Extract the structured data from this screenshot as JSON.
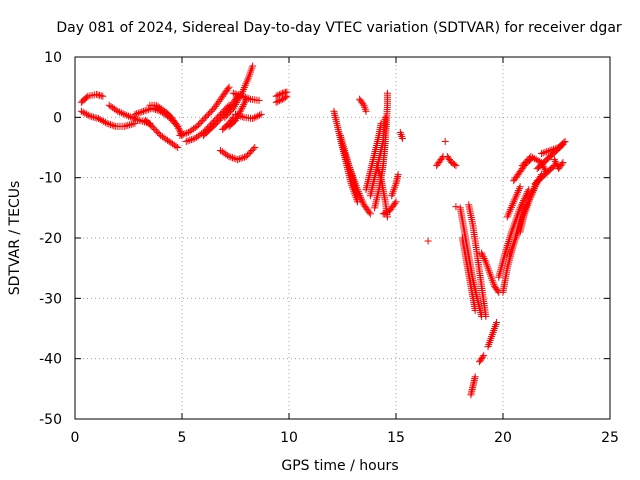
{
  "chart_data": {
    "type": "scatter",
    "title": "Day 081 of 2024, Sidereal Day-to-day VTEC variation (SDTVAR) for receiver dgar",
    "xlabel": "GPS time / hours",
    "ylabel": "SDTVAR / TECUs",
    "xlim": [
      0,
      25
    ],
    "ylim": [
      -50,
      10
    ],
    "xticks": [
      0,
      5,
      10,
      15,
      20,
      25
    ],
    "yticks": [
      -50,
      -40,
      -30,
      -20,
      -10,
      0,
      10
    ],
    "grid": true,
    "marker": "plus",
    "color": "#ff0000",
    "series": [
      {
        "tracks": [
          [
            [
              0.3,
              2.5
            ],
            [
              0.6,
              3.5
            ],
            [
              1.0,
              3.8
            ],
            [
              1.3,
              3.5
            ]
          ],
          [
            [
              0.3,
              1.0
            ],
            [
              0.7,
              0.2
            ],
            [
              1.1,
              -0.2
            ],
            [
              1.5,
              -1.0
            ],
            [
              1.9,
              -1.5
            ],
            [
              2.3,
              -1.5
            ],
            [
              2.8,
              -1.0
            ]
          ],
          [
            [
              1.6,
              2.0
            ],
            [
              2.0,
              1.0
            ],
            [
              2.5,
              0.2
            ],
            [
              3.0,
              -0.5
            ],
            [
              3.5,
              -1.0
            ]
          ],
          [
            [
              2.8,
              0.5
            ],
            [
              3.2,
              1.0
            ],
            [
              3.6,
              1.5
            ],
            [
              4.0,
              1.0
            ],
            [
              4.4,
              0.0
            ],
            [
              4.8,
              -1.5
            ],
            [
              5.0,
              -3.0
            ]
          ],
          [
            [
              3.3,
              -0.5
            ],
            [
              3.6,
              -1.5
            ],
            [
              4.0,
              -3.0
            ],
            [
              4.4,
              -4.0
            ],
            [
              4.8,
              -5.0
            ]
          ],
          [
            [
              3.5,
              2.0
            ],
            [
              3.8,
              2.0
            ],
            [
              4.2,
              1.0
            ],
            [
              4.5,
              0.0
            ],
            [
              4.8,
              -1.5
            ],
            [
              5.0,
              -3.0
            ]
          ],
          [
            [
              4.9,
              -3.0
            ],
            [
              5.3,
              -2.5
            ],
            [
              5.7,
              -1.5
            ],
            [
              6.1,
              0.0
            ],
            [
              6.5,
              1.5
            ],
            [
              6.9,
              3.5
            ],
            [
              7.2,
              5.0
            ]
          ],
          [
            [
              5.2,
              -4.0
            ],
            [
              5.6,
              -3.5
            ],
            [
              6.0,
              -2.5
            ],
            [
              6.4,
              -1.0
            ],
            [
              6.8,
              0.5
            ],
            [
              7.2,
              2.0
            ]
          ],
          [
            [
              6.0,
              -3.0
            ],
            [
              6.3,
              -2.0
            ],
            [
              6.6,
              -1.0
            ],
            [
              7.0,
              0.5
            ],
            [
              7.4,
              2.5
            ],
            [
              7.6,
              3.5
            ]
          ],
          [
            [
              7.0,
              0.0
            ],
            [
              7.4,
              1.5
            ],
            [
              7.8,
              4.0
            ],
            [
              8.1,
              6.5
            ],
            [
              8.3,
              8.5
            ]
          ],
          [
            [
              7.2,
              -1.5
            ],
            [
              7.5,
              -0.5
            ],
            [
              7.8,
              1.5
            ],
            [
              8.0,
              3.0
            ]
          ],
          [
            [
              7.4,
              4.0
            ],
            [
              7.8,
              3.5
            ],
            [
              8.2,
              3.0
            ],
            [
              8.6,
              2.8
            ]
          ],
          [
            [
              6.8,
              -5.5
            ],
            [
              7.2,
              -6.5
            ],
            [
              7.6,
              -7.0
            ],
            [
              8.0,
              -6.5
            ],
            [
              8.4,
              -5.0
            ]
          ],
          [
            [
              6.9,
              -2.0
            ],
            [
              7.2,
              -1.0
            ],
            [
              7.4,
              0.0
            ]
          ],
          [
            [
              7.5,
              0.5
            ],
            [
              7.9,
              0.0
            ],
            [
              8.3,
              -0.2
            ],
            [
              8.7,
              0.5
            ]
          ],
          [
            [
              9.4,
              3.5
            ],
            [
              9.7,
              4.0
            ],
            [
              9.9,
              4.2
            ]
          ],
          [
            [
              9.4,
              2.5
            ],
            [
              9.7,
              3.0
            ],
            [
              9.9,
              3.5
            ]
          ],
          [
            [
              12.1,
              1.0
            ],
            [
              12.3,
              -2.0
            ],
            [
              12.5,
              -5.0
            ],
            [
              12.7,
              -8.0
            ],
            [
              12.9,
              -11.0
            ],
            [
              13.2,
              -14.0
            ]
          ],
          [
            [
              12.4,
              -3.0
            ],
            [
              12.6,
              -5.5
            ],
            [
              12.8,
              -8.0
            ],
            [
              13.0,
              -10.5
            ],
            [
              13.2,
              -13.0
            ]
          ],
          [
            [
              12.6,
              -6.0
            ],
            [
              12.9,
              -9.0
            ],
            [
              13.2,
              -12.0
            ],
            [
              13.5,
              -14.5
            ],
            [
              13.8,
              -16.0
            ]
          ],
          [
            [
              13.6,
              -12.0
            ],
            [
              13.8,
              -9.0
            ],
            [
              14.0,
              -6.0
            ],
            [
              14.2,
              -3.0
            ],
            [
              14.3,
              -1.0
            ]
          ],
          [
            [
              13.8,
              -13.0
            ],
            [
              14.0,
              -10.0
            ],
            [
              14.2,
              -7.0
            ],
            [
              14.4,
              -4.0
            ],
            [
              14.5,
              0.0
            ]
          ],
          [
            [
              14.0,
              -15.0
            ],
            [
              14.2,
              -12.0
            ],
            [
              14.4,
              -8.0
            ],
            [
              14.5,
              -4.0
            ],
            [
              14.6,
              2.0
            ],
            [
              14.6,
              4.0
            ]
          ],
          [
            [
              14.1,
              -8.0
            ],
            [
              14.3,
              -10.0
            ],
            [
              14.5,
              -14.0
            ],
            [
              14.6,
              -16.5
            ]
          ],
          [
            [
              13.3,
              3.0
            ],
            [
              13.5,
              2.0
            ],
            [
              13.6,
              1.0
            ]
          ],
          [
            [
              14.4,
              -16.0
            ],
            [
              14.7,
              -15.5
            ],
            [
              15.0,
              -14.0
            ]
          ],
          [
            [
              14.8,
              -13.0
            ],
            [
              15.0,
              -11.0
            ],
            [
              15.1,
              -9.5
            ]
          ],
          [
            [
              15.2,
              -2.5
            ],
            [
              15.3,
              -3.5
            ]
          ],
          [
            [
              16.5,
              -20.5
            ]
          ],
          [
            [
              16.9,
              -8.0
            ],
            [
              17.1,
              -7.0
            ],
            [
              17.2,
              -6.5
            ]
          ],
          [
            [
              17.4,
              -6.5
            ],
            [
              17.6,
              -7.5
            ],
            [
              17.8,
              -8.0
            ]
          ],
          [
            [
              17.3,
              -4.0
            ]
          ],
          [
            [
              17.8,
              -14.8
            ]
          ],
          [
            [
              18.0,
              -15.0
            ],
            [
              18.2,
              -19.0
            ],
            [
              18.4,
              -23.0
            ],
            [
              18.6,
              -27.0
            ],
            [
              18.8,
              -30.0
            ],
            [
              19.0,
              -33.0
            ]
          ],
          [
            [
              18.1,
              -20.0
            ],
            [
              18.3,
              -24.0
            ],
            [
              18.5,
              -28.0
            ],
            [
              18.7,
              -32.0
            ]
          ],
          [
            [
              18.4,
              -14.5
            ],
            [
              18.6,
              -18.0
            ],
            [
              18.8,
              -23.0
            ],
            [
              19.0,
              -28.0
            ],
            [
              19.2,
              -33.0
            ]
          ],
          [
            [
              18.5,
              -46.0
            ],
            [
              18.6,
              -44.5
            ],
            [
              18.7,
              -43.0
            ]
          ],
          [
            [
              18.9,
              -40.5
            ],
            [
              19.1,
              -39.5
            ]
          ],
          [
            [
              19.0,
              -22.5
            ],
            [
              19.2,
              -24.0
            ],
            [
              19.4,
              -26.0
            ],
            [
              19.6,
              -28.0
            ],
            [
              19.8,
              -29.0
            ]
          ],
          [
            [
              19.3,
              -38.0
            ],
            [
              19.5,
              -36.0
            ],
            [
              19.7,
              -34.0
            ]
          ],
          [
            [
              19.8,
              -26.5
            ],
            [
              20.1,
              -22.5
            ],
            [
              20.4,
              -19.0
            ],
            [
              20.8,
              -15.0
            ],
            [
              21.2,
              -12.0
            ]
          ],
          [
            [
              20.0,
              -29.0
            ],
            [
              20.2,
              -25.0
            ],
            [
              20.5,
              -21.0
            ],
            [
              20.8,
              -17.0
            ],
            [
              21.1,
              -14.5
            ]
          ],
          [
            [
              20.3,
              -23.0
            ],
            [
              20.6,
              -20.0
            ],
            [
              20.9,
              -17.0
            ],
            [
              21.2,
              -14.0
            ],
            [
              21.5,
              -11.5
            ],
            [
              21.8,
              -9.5
            ]
          ],
          [
            [
              20.8,
              -19.0
            ],
            [
              21.0,
              -16.0
            ],
            [
              21.3,
              -13.0
            ],
            [
              21.6,
              -10.5
            ]
          ],
          [
            [
              20.2,
              -16.5
            ],
            [
              20.5,
              -14.0
            ],
            [
              20.8,
              -11.5
            ]
          ],
          [
            [
              20.5,
              -10.5
            ],
            [
              20.8,
              -9.0
            ],
            [
              21.1,
              -7.5
            ],
            [
              21.3,
              -7.0
            ]
          ],
          [
            [
              20.9,
              -8.0
            ],
            [
              21.3,
              -6.5
            ],
            [
              21.8,
              -7.5
            ],
            [
              22.0,
              -9.0
            ]
          ],
          [
            [
              21.6,
              -8.5
            ],
            [
              21.9,
              -7.5
            ],
            [
              22.2,
              -6.5
            ],
            [
              22.5,
              -5.5
            ],
            [
              22.8,
              -4.5
            ]
          ],
          [
            [
              21.8,
              -6.0
            ],
            [
              22.2,
              -5.5
            ],
            [
              22.6,
              -5.0
            ],
            [
              22.9,
              -4.0
            ]
          ],
          [
            [
              22.4,
              -7.0
            ],
            [
              22.6,
              -8.5
            ],
            [
              22.8,
              -7.5
            ]
          ],
          [
            [
              21.5,
              -11.0
            ],
            [
              21.8,
              -10.0
            ],
            [
              22.1,
              -9.0
            ],
            [
              22.4,
              -8.0
            ]
          ]
        ]
      }
    ]
  }
}
